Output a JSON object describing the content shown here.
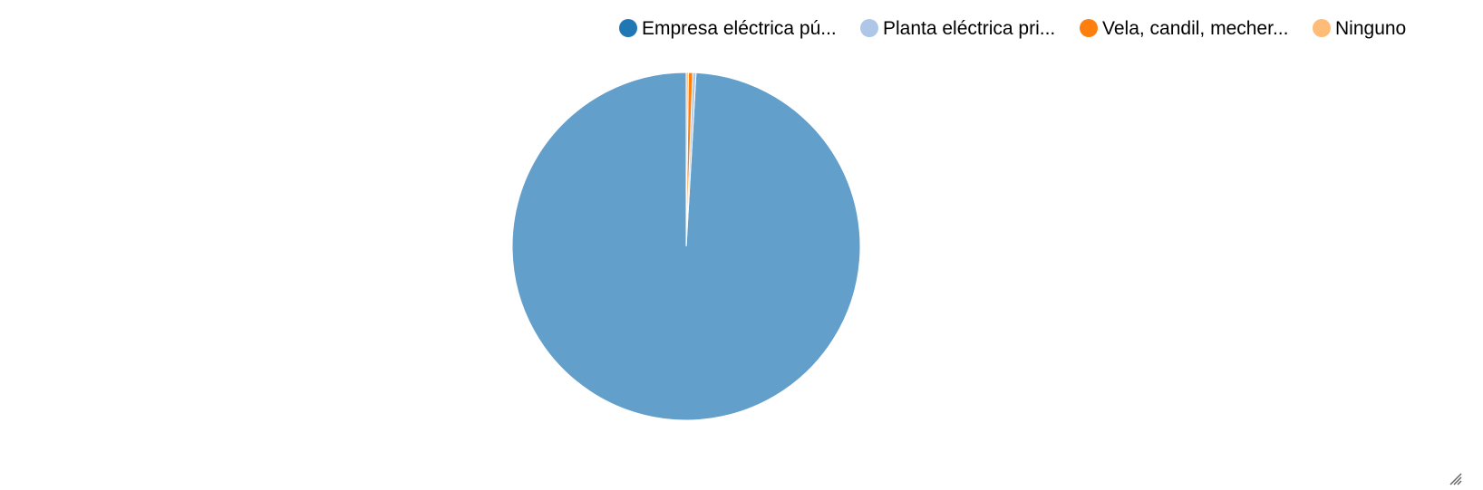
{
  "colors": {
    "background": "#ffffff",
    "slice_border": "#ffffff",
    "resize_handle": "#666666"
  },
  "chart_data": {
    "type": "pie",
    "title": "",
    "slices": [
      {
        "label": "Empresa eléctrica pú...",
        "value": 99.1,
        "color": "#1f77b4",
        "fill_color": "#639fcb"
      },
      {
        "label": "Planta eléctrica pri...",
        "value": 0.3,
        "color": "#aec7e8",
        "fill_color": "#aec7e8"
      },
      {
        "label": "Vela, candil, mecher...",
        "value": 0.4,
        "color": "#ff7f0e",
        "fill_color": "#ff7f0e"
      },
      {
        "label": "Ninguno",
        "value": 0.2,
        "color": "#ffbb78",
        "fill_color": "#ffbb78"
      }
    ],
    "legend": "top-right"
  },
  "icons": {
    "resize_handle": "resize-grip-icon"
  }
}
